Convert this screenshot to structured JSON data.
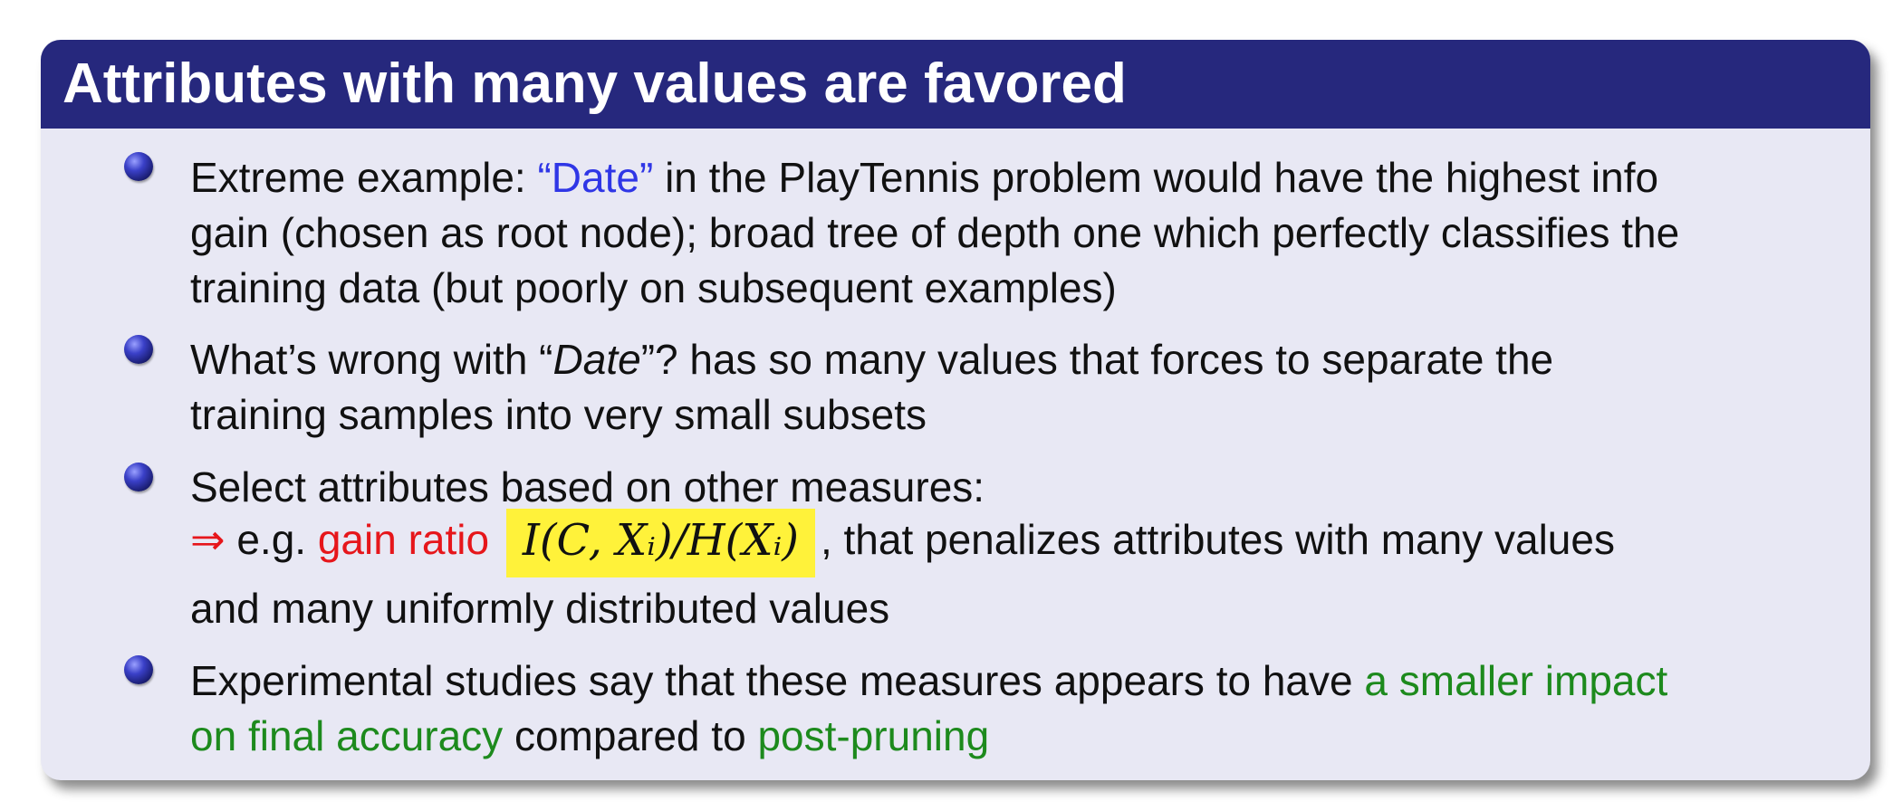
{
  "slide": {
    "title": "Attributes with many values are favored",
    "bullets": [
      {
        "lines": [
          {
            "a": "Extreme example: ",
            "b": "“Date”",
            "c": " in the PlayTennis problem would have the highest info"
          },
          {
            "a": "gain (chosen as root node); broad tree of depth one which perfectly classifies the"
          },
          {
            "a": "training data (but poorly on subsequent examples)"
          }
        ]
      },
      {
        "lines": [
          {
            "a": "What’s wrong with “",
            "b": "Date",
            "c": "”? has so many values that forces to separate the"
          },
          {
            "a": "training samples into very small subsets"
          }
        ]
      },
      {
        "lines": [
          {
            "a": "Select attributes based on other measures:"
          },
          {
            "arrow": "⇒",
            "a": " e.g. ",
            "b": "gain ratio",
            "formula": "I(C, Xᵢ)/H(Xᵢ)",
            "c": ", that penalizes attributes with many values"
          },
          {
            "a": "and many uniformly distributed values"
          }
        ]
      },
      {
        "lines": [
          {
            "a": "Experimental studies say that these measures appears to have ",
            "b": "a smaller impact"
          },
          {
            "b": "on final accuracy",
            "c": " compared to ",
            "d": "post-pruning"
          }
        ]
      }
    ]
  }
}
